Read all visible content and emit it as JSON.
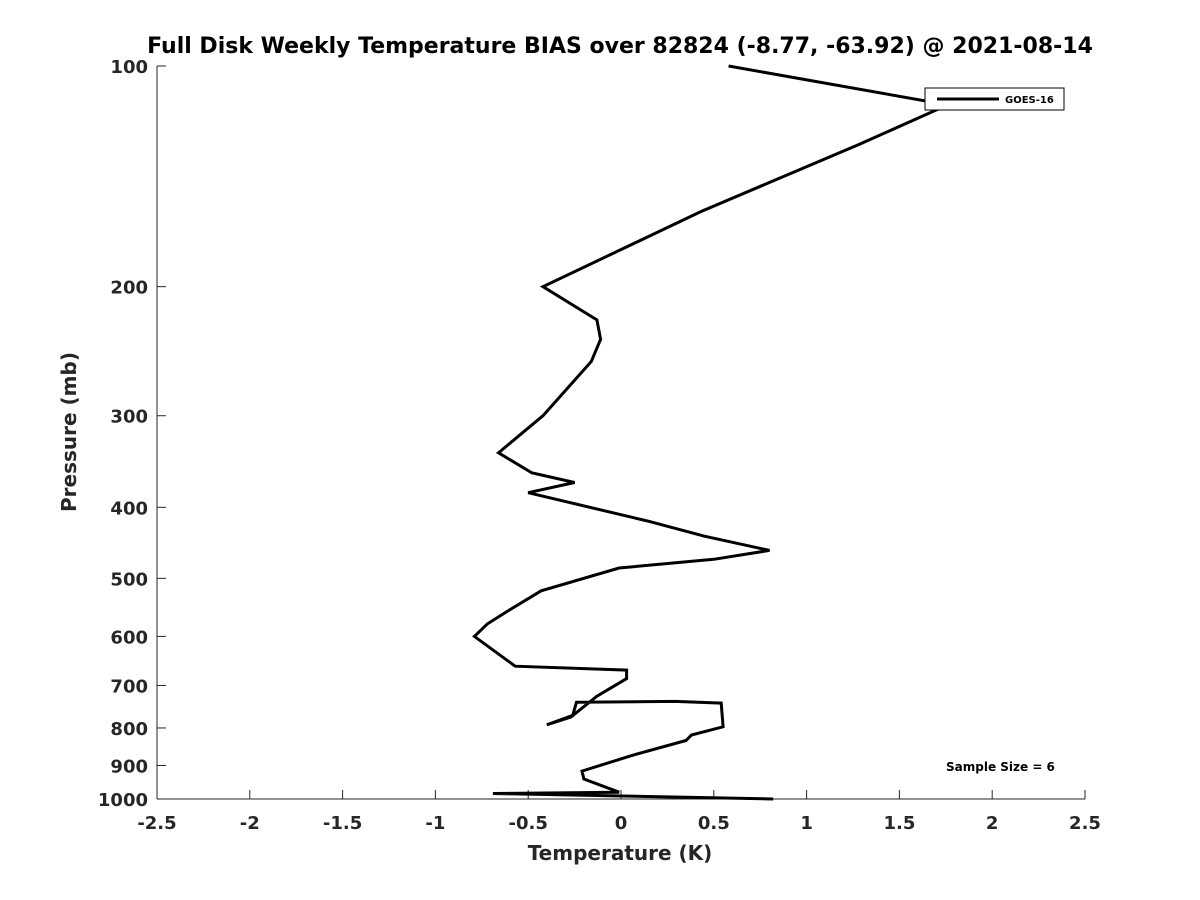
{
  "chart_data": {
    "type": "line",
    "title": "Full Disk Weekly Temperature BIAS over 82824 (-8.77, -63.92) @ 2021-08-14",
    "xlabel": "Temperature (K)",
    "ylabel": "Pressure (mb)",
    "xlim": [
      -2.5,
      2.5
    ],
    "ylim": [
      1000,
      100
    ],
    "y_scale": "log",
    "y_reversed": true,
    "xticks": [
      "-2.5",
      "-2",
      "-1.5",
      "-1",
      "-0.5",
      "0",
      "0.5",
      "1",
      "1.5",
      "2",
      "2.5"
    ],
    "xtick_values": [
      -2.5,
      -2,
      -1.5,
      -1,
      -0.5,
      0,
      0.5,
      1,
      1.5,
      2,
      2.5
    ],
    "yticks": [
      "100",
      "200",
      "300",
      "400",
      "500",
      "600",
      "700",
      "800",
      "900",
      "1000"
    ],
    "ytick_values": [
      100,
      200,
      300,
      400,
      500,
      600,
      700,
      800,
      900,
      1000
    ],
    "grid": false,
    "legend_position": "top-right",
    "annotation": "Sample Size = 6",
    "series": [
      {
        "name": "GOES-16",
        "color": "#000000",
        "x": [
          0.58,
          1.76,
          1.28,
          0.43,
          -0.42,
          -0.13,
          -0.11,
          -0.16,
          -0.42,
          -0.66,
          -0.48,
          -0.25,
          -0.5,
          0.15,
          0.45,
          0.8,
          0.5,
          -0.01,
          -0.43,
          -0.61,
          -0.72,
          -0.79,
          -0.57,
          0.03,
          0.03,
          -0.13,
          -0.27,
          -0.4,
          -0.26,
          -0.24,
          0.29,
          0.54,
          0.55,
          0.38,
          0.35,
          0.06,
          -0.21,
          -0.2,
          -0.01,
          -0.69,
          0.82
        ],
        "y": [
          100,
          113,
          128,
          158,
          200,
          222,
          236,
          253,
          300,
          337,
          359,
          370,
          382,
          418,
          438,
          458,
          471,
          484,
          520,
          554,
          577,
          600,
          659,
          667,
          685,
          724,
          773,
          792,
          769,
          738,
          736,
          740,
          797,
          818,
          832,
          872,
          916,
          939,
          979,
          983,
          1000
        ]
      }
    ]
  }
}
